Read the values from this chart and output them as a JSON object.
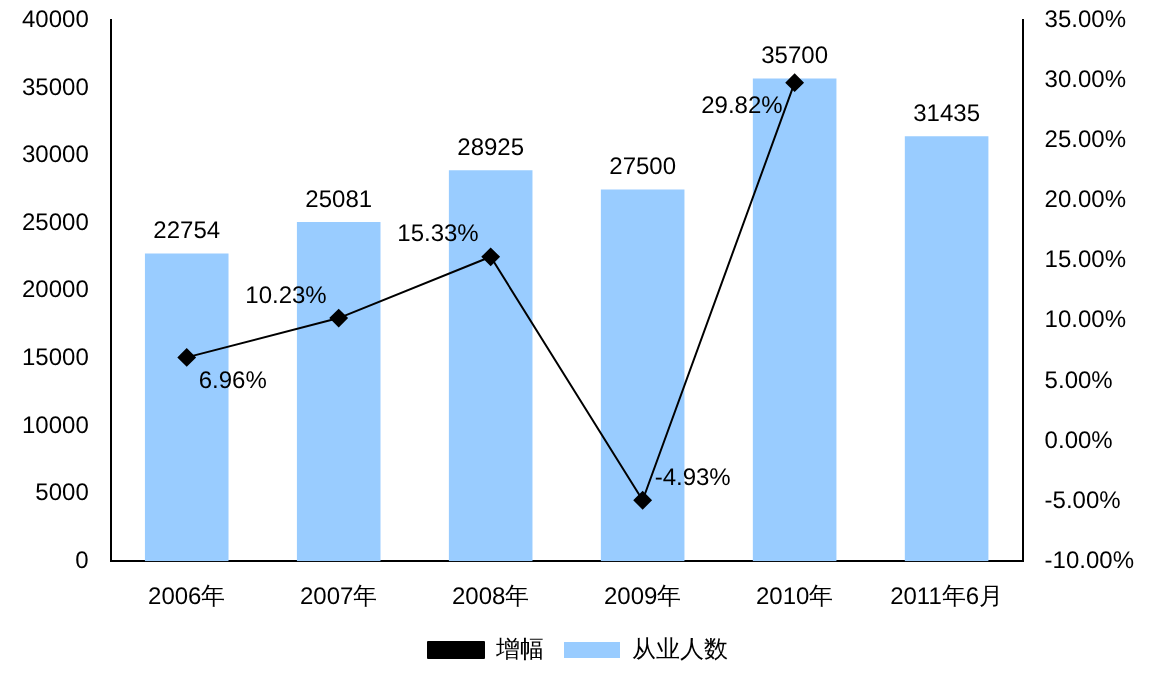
{
  "chart_data": {
    "type": "bar",
    "categories": [
      "2006年",
      "2007年",
      "2008年",
      "2009年",
      "2010年",
      "2011年6月"
    ],
    "series": [
      {
        "name": "从业人数",
        "color": "#99ccff",
        "values": [
          22754,
          25081,
          28925,
          27500,
          35700,
          31435
        ],
        "value_labels": [
          "22754",
          "25081",
          "28925",
          "27500",
          "35700",
          "31435"
        ]
      },
      {
        "name": "增幅",
        "type": "line",
        "axis": "y2",
        "color": "#000000",
        "marker": "diamond",
        "values": [
          6.96,
          10.23,
          15.33,
          -4.93,
          29.82,
          null
        ],
        "value_labels": [
          "6.96%",
          "10.23%",
          "15.33%",
          "-4.93%",
          "29.82%",
          null
        ]
      }
    ],
    "ylim": [
      0,
      40000
    ],
    "yticks": [
      0,
      5000,
      10000,
      15000,
      20000,
      25000,
      30000,
      35000,
      40000
    ],
    "y2lim": [
      -10,
      35
    ],
    "y2ticks": [
      {
        "value": -10,
        "label": "-10.00%"
      },
      {
        "value": -5,
        "label": "-5.00%"
      },
      {
        "value": 0,
        "label": "0.00%"
      },
      {
        "value": 5,
        "label": "5.00%"
      },
      {
        "value": 10,
        "label": "10.00%"
      },
      {
        "value": 15,
        "label": "15.00%"
      },
      {
        "value": 20,
        "label": "20.00%"
      },
      {
        "value": 25,
        "label": "25.00%"
      },
      {
        "value": 30,
        "label": "30.00%"
      },
      {
        "value": 35,
        "label": "35.00%"
      }
    ],
    "grid": false,
    "legend": "bottom"
  }
}
